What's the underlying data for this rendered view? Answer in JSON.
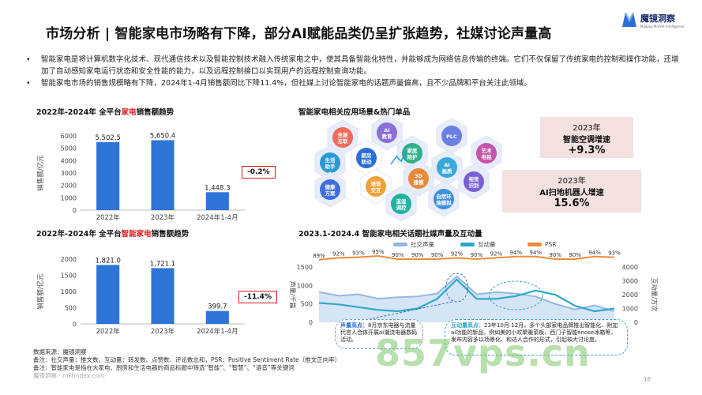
{
  "title": "市场分析 | 智能家电市场略有下降，部分AI赋能品类仍呈扩张趋势，社媒讨论声量高",
  "logo": {
    "name": "魔镜洞察",
    "subtitle": "Moojing Market Intelligence"
  },
  "bullets": [
    "智能家电是将计算机数字化技术、现代通信技术以及智能控制技术融入传统家电之中，使其具备智能化特性，并能够成为网络信息传输的终端。它们不仅保留了传统家电的控制和操作功能，还增加了自动感知家电运行状态和安全性能的能力，以及远程控制接口以实现用户的远程控制查询功能。",
    "智能家电市场的销售规模略有下降，2024年1-4月销售额同比下降11.4%，但社媒上讨论智能家电的话题声量偏高，且不少品牌和平台关注此领域。"
  ],
  "chart1": {
    "title_pre": "2022年-2024年 全平台",
    "title_hl": "家电",
    "title_post": "销售额趋势",
    "ylabel": "销售额/亿元",
    "yoy": "-0.2%"
  },
  "chart2": {
    "title_pre": "2022年-2024年 全平台",
    "title_hl": "智能家电",
    "title_post": "销售额趋势",
    "ylabel": "销售额/亿元",
    "yoy": "-11.4%"
  },
  "chart3": {
    "title": "2023.1-2024.4 智能家电相关话题社媒声量及互动量",
    "ylabel_left": "声量/千篇",
    "ylabel_right": "互动量/万次",
    "legend": [
      "社交声量",
      "互动量",
      "PSR"
    ]
  },
  "scenes": {
    "title": "智能家电相关应用场景&热门单品",
    "hexes": [
      "全屋互联",
      "AI教育",
      "生活助手",
      "厨房联动",
      "家庭陪护",
      "PLC",
      "艺术电视",
      "健康方案",
      "语音交互",
      "3D建模",
      "AI画质",
      "视觉识别",
      "温湿调控",
      "自然环境模拟"
    ]
  },
  "growth": [
    {
      "year": "2023年",
      "label": "智能空调增速",
      "value": "+9.3%"
    },
    {
      "year": "2023年",
      "label": "AI扫地机器人增速",
      "value": "15.6%"
    }
  ],
  "callouts": {
    "left_head": "声量高点：",
    "left_text": "8月京东电器与流量代言人合体开展ai潮流电器数码活动。",
    "right_head": "互动量高点：",
    "right_text": "23年10月-12月，多个头部家电品牌推出智能化、附加ai功能的新品，例如美的小欢聚暖菜板、西门子智能enose冰箱等，发布内容多以场景化、和达人合作的形式，引起较大讨论度。"
  },
  "notes": [
    "数据来源：魔镜洞察",
    "备注：社交声量：推文数，互动量：转发数、点赞数、评论数总和，PSR：Positive Sentiment Rate（推文正向率）",
    "备注：智能家电是指在大家电、厨房和生活电器的商品标题中筛选“智能”、“智慧”、“语音”等关键词"
  ],
  "footer": "魔镜洞察 · mktindex.com",
  "watermark": "857vps.cn",
  "page_number": "18",
  "colors": {
    "bar": "#2e75d6",
    "accent": "#e0191c",
    "vol": "#92b8e4",
    "inter": "#2fa8c8",
    "psr": "#f08b3a"
  },
  "chart_data": [
    {
      "type": "bar",
      "title": "2022年-2024年 全平台家电销售额趋势",
      "categories": [
        "2022年",
        "2023年",
        "2024年1-4月"
      ],
      "values": [
        5502.5,
        5650.4,
        1448.3
      ],
      "labels": [
        "5,502.5",
        "5,650.4",
        "1,448.3"
      ],
      "ylabel": "销售额/亿元",
      "ylim": [
        0,
        6000
      ],
      "yticks": [
        0,
        1000,
        2000,
        3000,
        4000,
        5000,
        6000
      ]
    },
    {
      "type": "bar",
      "title": "2022年-2024年 全平台智能家电销售额趋势",
      "categories": [
        "2022年",
        "2023年",
        "2024年1-4月"
      ],
      "values": [
        1821.0,
        1721.1,
        399.7
      ],
      "labels": [
        "1,821.0",
        "1,721.1",
        "399.7"
      ],
      "ylabel": "销售额/亿元",
      "ylim": [
        0,
        2000
      ],
      "yticks": [
        0,
        500,
        1000,
        1500,
        2000
      ]
    },
    {
      "type": "line",
      "title": "2023.1-2024.4 智能家电相关话题社媒声量及互动量",
      "x": [
        "2023.1",
        "2023.2",
        "2023.3",
        "2023.4",
        "2023.5",
        "2023.6",
        "2023.7",
        "2023.8",
        "2023.9",
        "2023.10",
        "2023.11",
        "2023.12",
        "2024.1",
        "2024.2",
        "2024.3",
        "2024.4"
      ],
      "series": [
        {
          "name": "社交声量",
          "axis": "left",
          "values": [
            820,
            720,
            760,
            640,
            680,
            700,
            780,
            1250,
            760,
            820,
            780,
            700,
            500,
            350,
            460,
            300
          ]
        },
        {
          "name": "互动量",
          "axis": "right",
          "values": [
            1400,
            1300,
            1100,
            900,
            800,
            1000,
            1700,
            3100,
            1700,
            1700,
            1900,
            2300,
            2000,
            1200,
            800,
            1000
          ]
        },
        {
          "name": "PSR",
          "axis": "top",
          "values": [
            89,
            92,
            93,
            95,
            90,
            90,
            90,
            92,
            90,
            92,
            94,
            94,
            90,
            90,
            94,
            93
          ],
          "labels": [
            "89%",
            "92%",
            "93%",
            "95%",
            "90%",
            "90%",
            "90%",
            "92%",
            "90%",
            "92%",
            "94%",
            "94%",
            "90%",
            "90%",
            "94%",
            "93%"
          ]
        }
      ],
      "ylim_left": [
        0,
        1500
      ],
      "yticks_left": [
        0,
        500,
        1000,
        1500
      ],
      "ylim_right": [
        0,
        4000
      ],
      "yticks_right": [
        0,
        1000,
        2000,
        3000,
        4000
      ],
      "ylabel_left": "声量/千篇",
      "ylabel_right": "互动量/万次"
    }
  ]
}
